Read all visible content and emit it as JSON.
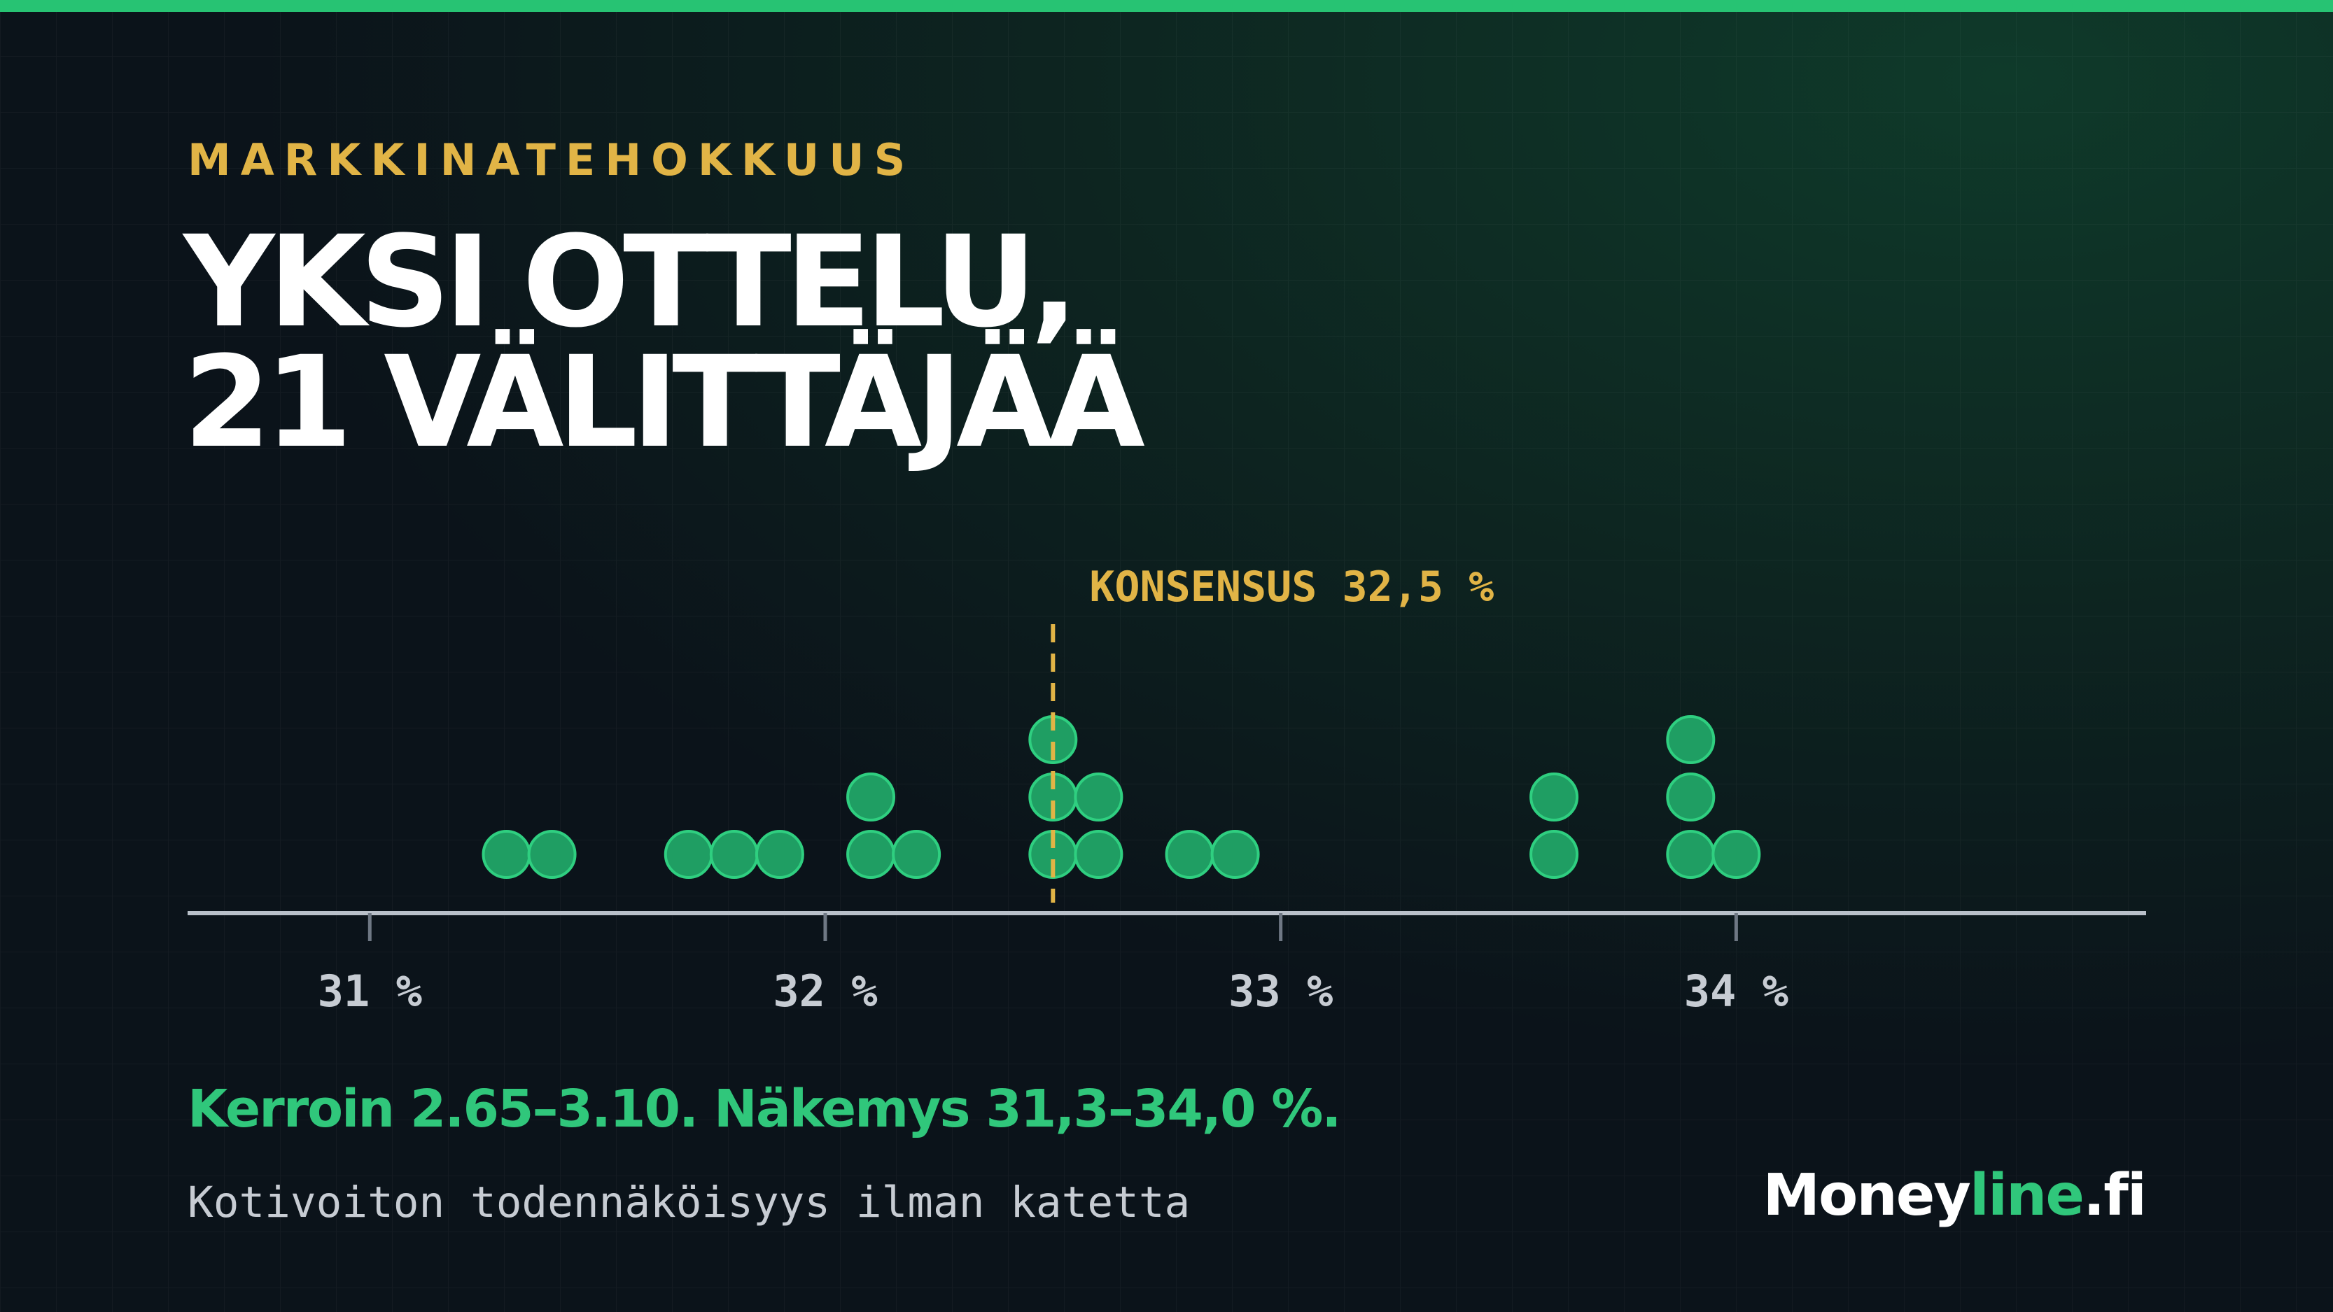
{
  "eyebrow": "MARKKINATEHOKKUUS",
  "headline": {
    "line1": "YKSI OTTELU,",
    "line2": "21 VÄLITTÄJÄÄ"
  },
  "summary": "Kerroin 2.65–3.10. Näkemys 31,3–34,0 %.",
  "caption": "Kotivoiton todennäköisyys ilman katetta",
  "brand": {
    "name": "Money",
    "accent": "line",
    "suffix": ".fi"
  },
  "colors": {
    "background": "#0b131a",
    "accent_green": "#27c373",
    "dot_fill": "#1f9e63",
    "dot_stroke": "#2fcf80",
    "consensus": "#e1b446",
    "axis": "#b9c0c9"
  },
  "chart_data": {
    "type": "dot-plot",
    "xlim": [
      30.6,
      34.9
    ],
    "ticks": [
      31,
      32,
      33,
      34
    ],
    "tick_labels": [
      "31 %",
      "32 %",
      "33 %",
      "34 %"
    ],
    "grid": true,
    "consensus": {
      "value": 32.5,
      "label": "KONSENSUS 32,5 %"
    },
    "values": [
      31.3,
      31.4,
      31.7,
      31.8,
      31.9,
      32.1,
      32.1,
      32.2,
      32.5,
      32.5,
      32.5,
      32.6,
      32.6,
      32.8,
      32.9,
      33.6,
      33.6,
      33.9,
      33.9,
      33.9,
      34.0
    ]
  }
}
